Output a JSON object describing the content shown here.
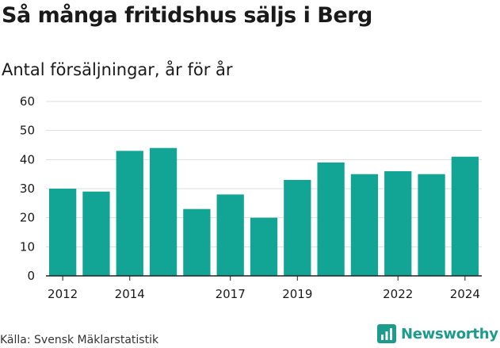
{
  "title": "Så många fritidshus säljs i Berg",
  "subtitle": "Antal försäljningar, år för år",
  "source": "Källa: Svensk Mäklarstatistik",
  "brand": {
    "name": "Newsworthy",
    "icon": "newsworthy-logo-icon",
    "color": "#1c9c8c"
  },
  "colors": {
    "bar": "#12a596",
    "grid": "#dddddd",
    "axis": "#222222"
  },
  "chart_data": {
    "type": "bar",
    "title": "Så många fritidshus säljs i Berg",
    "subtitle": "Antal försäljningar, år för år",
    "categories": [
      "2012",
      "2013",
      "2014",
      "2015",
      "2016",
      "2017",
      "2018",
      "2019",
      "2020",
      "2021",
      "2022",
      "2023",
      "2024"
    ],
    "values": [
      30,
      29,
      43,
      44,
      23,
      28,
      20,
      33,
      39,
      35,
      36,
      35,
      41
    ],
    "ylim": [
      0,
      60
    ],
    "yticks": [
      0,
      10,
      20,
      30,
      40,
      50,
      60
    ],
    "xtick_labels": [
      "2012",
      "2014",
      "2017",
      "2019",
      "2022",
      "2024"
    ],
    "grid": true,
    "legend": "none"
  }
}
